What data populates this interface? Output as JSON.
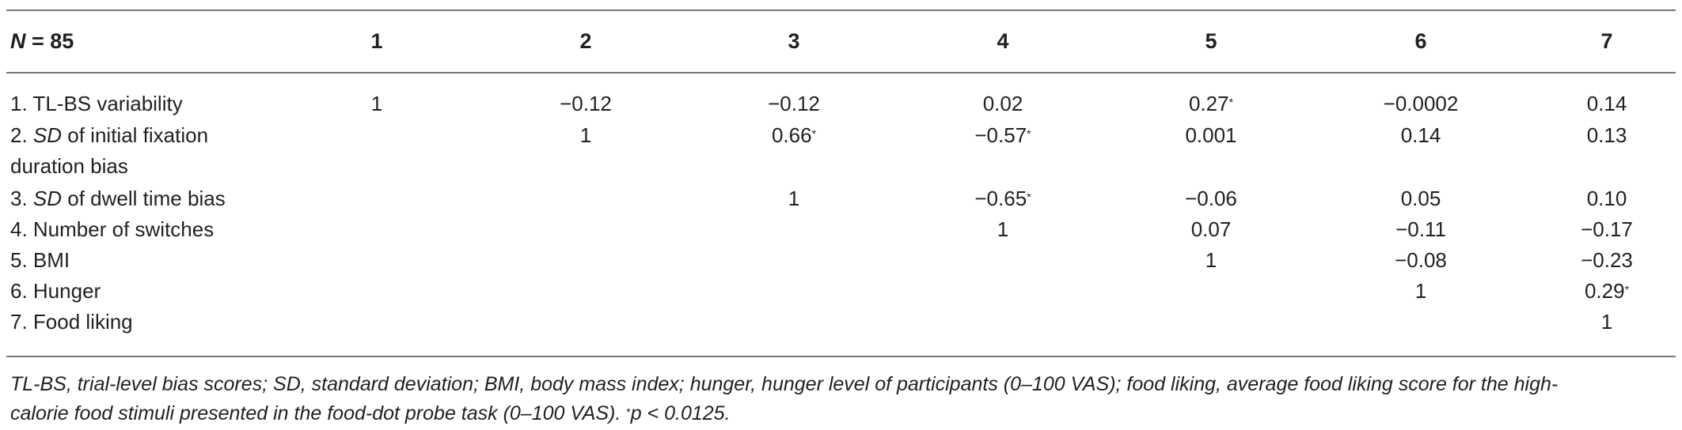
{
  "table": {
    "n_label_sym": "N",
    "n_label_rest": " = 85",
    "columns": [
      "1",
      "2",
      "3",
      "4",
      "5",
      "6",
      "7"
    ],
    "rows": [
      {
        "label_sd": "",
        "label": "1. TL-BS variability",
        "label2": "",
        "cells": [
          "1",
          "−0.12",
          "−0.12",
          "0.02",
          "0.27",
          "−0.0002",
          "0.14"
        ],
        "star": [
          false,
          false,
          false,
          false,
          true,
          false,
          false
        ]
      },
      {
        "label_sd": "SD",
        "label_prefix": "2. ",
        "label": " of initial fixation",
        "label2": "duration bias",
        "cells": [
          "",
          "1",
          "0.66",
          "−0.57",
          "0.001",
          "0.14",
          "0.13"
        ],
        "star": [
          false,
          false,
          true,
          true,
          false,
          false,
          false
        ]
      },
      {
        "label_sd": "SD",
        "label_prefix": "3. ",
        "label": " of dwell time bias",
        "label2": "",
        "cells": [
          "",
          "",
          "1",
          "−0.65",
          "−0.06",
          "0.05",
          "0.10"
        ],
        "star": [
          false,
          false,
          false,
          true,
          false,
          false,
          false
        ]
      },
      {
        "label_sd": "",
        "label": "4. Number of switches",
        "label2": "",
        "cells": [
          "",
          "",
          "",
          "1",
          "0.07",
          "−0.11",
          "−0.17"
        ],
        "star": [
          false,
          false,
          false,
          false,
          false,
          false,
          false
        ]
      },
      {
        "label_sd": "",
        "label": "5. BMI",
        "label2": "",
        "cells": [
          "",
          "",
          "",
          "",
          "1",
          "−0.08",
          "−0.23"
        ],
        "star": [
          false,
          false,
          false,
          false,
          false,
          false,
          false
        ]
      },
      {
        "label_sd": "",
        "label": "6. Hunger",
        "label2": "",
        "cells": [
          "",
          "",
          "",
          "",
          "",
          "1",
          "0.29"
        ],
        "star": [
          false,
          false,
          false,
          false,
          false,
          false,
          true
        ]
      },
      {
        "label_sd": "",
        "label": "7. Food liking",
        "label2": "",
        "cells": [
          "",
          "",
          "",
          "",
          "",
          "",
          "1"
        ],
        "star": [
          false,
          false,
          false,
          false,
          false,
          false,
          false
        ]
      }
    ],
    "star_mark": "*"
  },
  "footnote": {
    "line1": "TL-BS, trial-level bias scores; SD, standard deviation; BMI, body mass index; hunger, hunger level of participants (0–100 VAS); food liking, average food liking score for the high-",
    "line2_a": "calorie food stimuli presented in the food-dot probe task (0–100 VAS). ",
    "line2_star": "*",
    "line2_b": "p < 0.0125."
  }
}
